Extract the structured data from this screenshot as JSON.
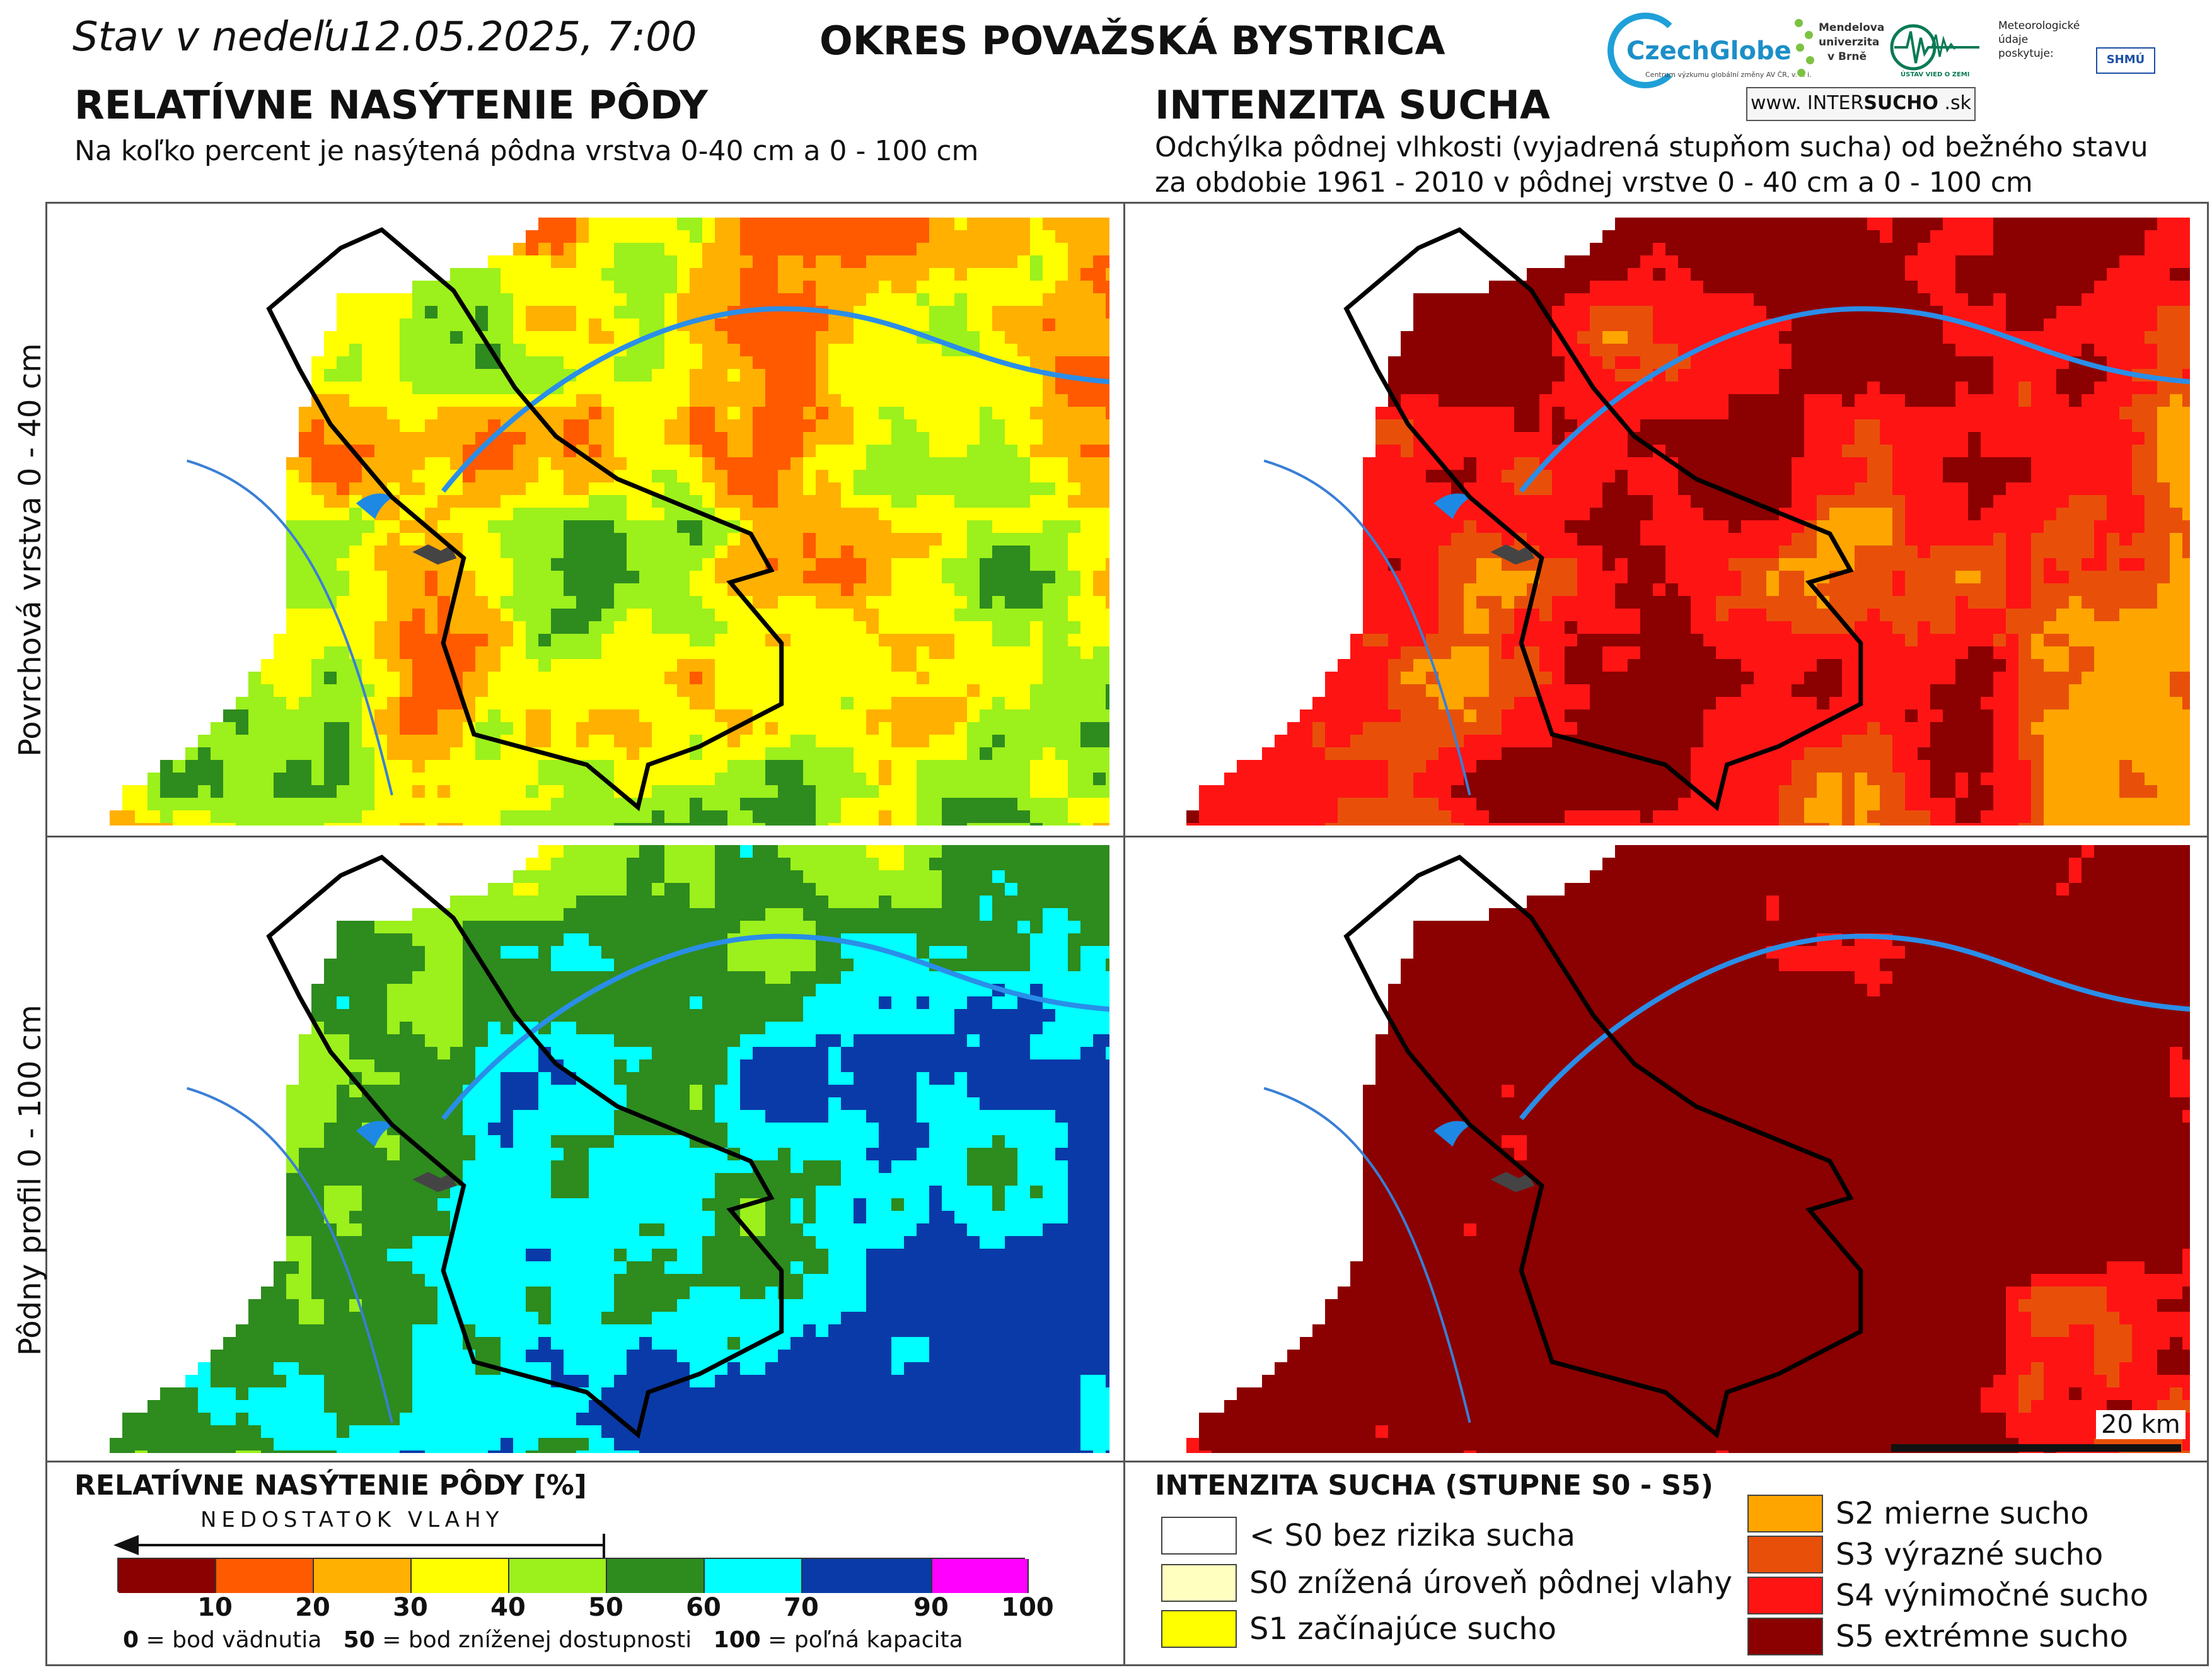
{
  "header": {
    "datetime": "Stav v nedeľu12.05.2025, 7:00",
    "district": "OKRES  POVAŽSKÁ BYSTRICA"
  },
  "logos": {
    "czechglobe": "CzechGlobe",
    "czechglobe_sub": "Centrum výzkumu globální změny AV ČR, v. v. i.",
    "mendel": "Mendelova univerzita v Brně",
    "ustav": "ÚSTAV VIED O ZEMI",
    "shmu_text": "Meteorologické údaje poskytuje:",
    "shmu_badge": "SHMÚ",
    "intersucho_prefix": "www. INTER",
    "intersucho_bold": "SUCHO",
    "intersucho_suffix": " .sk"
  },
  "left_section": {
    "title": "RELATÍVNE NASÝTENIE PÔDY",
    "subtitle": "Na koľko percent je nasýtená pôdna vrstva 0-40 cm a 0 - 100 cm"
  },
  "right_section": {
    "title": "INTENZITA SUCHA",
    "subtitle_line1": "Odchýlka pôdnej vlhkosti (vyjadrená stupňom sucha) od bežného stavu",
    "subtitle_line2": "za obdobie 1961 - 2010 v pôdnej vrstve 0 - 40 cm a 0 - 100 cm"
  },
  "row_labels": {
    "top": "Povrchová vrstva 0 - 40 cm",
    "bottom": "Pôdny profil 0 - 100 cm"
  },
  "scalebar": {
    "label": "20 km"
  },
  "legend_saturation": {
    "title": "RELATÍVNE NASÝTENIE PÔDY [%]",
    "arrow_label": "NEDOSTATOK VLAHY",
    "classes": [
      {
        "to": "10",
        "color": "#8b0000"
      },
      {
        "to": "20",
        "color": "#ff5a00"
      },
      {
        "to": "30",
        "color": "#ffb000"
      },
      {
        "to": "40",
        "color": "#ffff00"
      },
      {
        "to": "50",
        "color": "#9cf01c"
      },
      {
        "to": "60",
        "color": "#2e8b1e"
      },
      {
        "to": "70",
        "color": "#00ffff"
      },
      {
        "to": "90",
        "color": "#0a3aa8"
      },
      {
        "to": "100",
        "color": "#ff00ff"
      }
    ],
    "foot_0_value": "0",
    "foot_0_text": " = bod vädnutia",
    "foot_50_value": "50",
    "foot_50_text": " = bod zníženej dostupnosti",
    "foot_100_value": "100",
    "foot_100_text": " = poľná kapacita"
  },
  "legend_drought": {
    "title": "INTENZITA SUCHA (STUPNE S0 - S5)",
    "items": [
      {
        "label": "< S0 bez rizika sucha",
        "color": "#ffffff"
      },
      {
        "label": "S0 znížená úroveň pôdnej vlahy",
        "color": "#ffffc0"
      },
      {
        "label": "S1 začínajúce sucho",
        "color": "#ffff00"
      },
      {
        "label": "S2 mierne sucho",
        "color": "#ffa500"
      },
      {
        "label": "S3 výrazné sucho",
        "color": "#e8500a"
      },
      {
        "label": "S4 výnimočné sucho",
        "color": "#ff1414"
      },
      {
        "label": "S5 extrémne sucho",
        "color": "#8b0000"
      }
    ]
  }
}
